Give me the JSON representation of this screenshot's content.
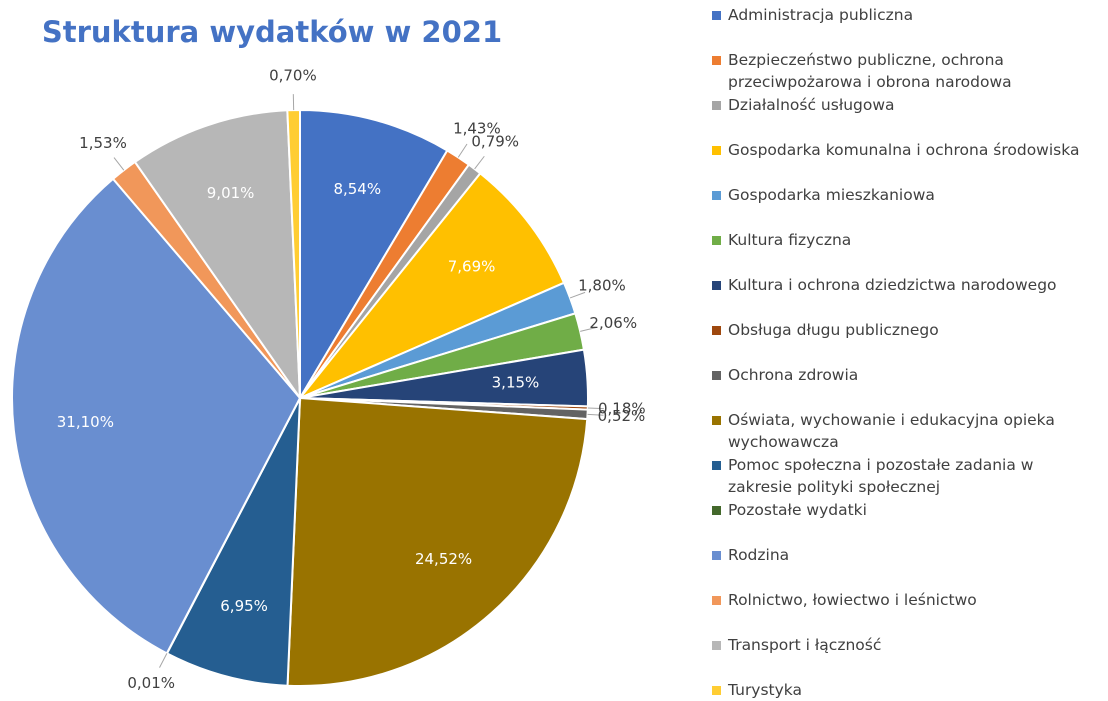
{
  "chart_data": {
    "type": "pie",
    "title": "Struktura wydatków w 2021",
    "categories": [
      "Administracja publiczna",
      "Bezpieczeństwo publiczne, ochrona przeciwpożarowa i obrona narodowa",
      "Działalność usługowa",
      "Gospodarka komunalna i ochrona środowiska",
      "Gospodarka mieszkaniowa",
      "Kultura fizyczna",
      "Kultura i ochrona dziedzictwa narodowego",
      "Obsługa długu publicznego",
      "Ochrona zdrowia",
      "Oświata, wychowanie i edukacyjna opieka wychowawcza",
      "Pomoc społeczna i pozostałe zadania w zakresie polityki społecznej",
      "Pozostałe wydatki",
      "Rodzina",
      "Rolnictwo, łowiectwo i leśnictwo",
      "Transport i łączność",
      "Turystyka"
    ],
    "values": [
      8.54,
      1.43,
      0.79,
      7.69,
      1.8,
      2.06,
      3.15,
      0.18,
      0.52,
      24.52,
      6.95,
      0.01,
      31.1,
      1.53,
      9.01,
      0.7
    ],
    "value_labels": [
      "8,54%",
      "1,43%",
      "0,79%",
      "7,69%",
      "1,80%",
      "2,06%",
      "3,15%",
      "0,18%",
      "0,52%",
      "24,52%",
      "6,95%",
      "0,01%",
      "31,10%",
      "1,53%",
      "9,01%",
      "0,70%"
    ],
    "colors": [
      "#4472c4",
      "#ed7d31",
      "#a5a5a5",
      "#ffc000",
      "#5b9bd5",
      "#70ad47",
      "#264478",
      "#9e480e",
      "#636363",
      "#997300",
      "#255e91",
      "#43682b",
      "#698ed0",
      "#f1975a",
      "#b7b7b7",
      "#ffcd33"
    ],
    "legend": "right"
  }
}
